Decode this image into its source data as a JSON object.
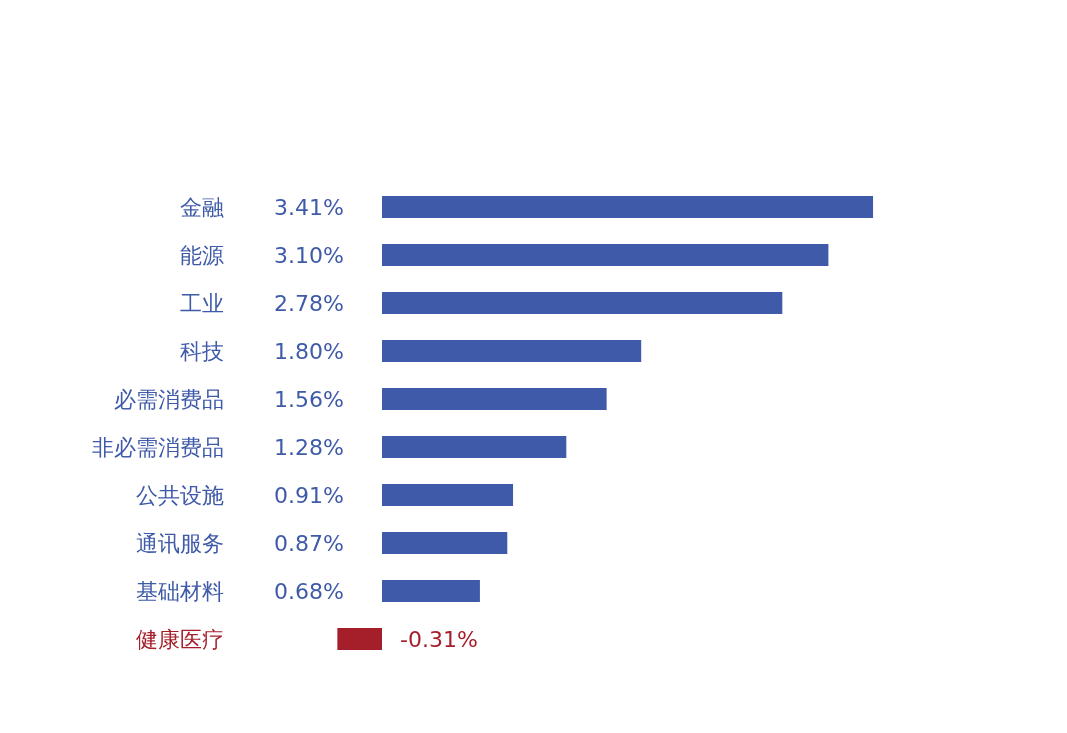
{
  "chart_data": {
    "type": "bar",
    "orientation": "horizontal",
    "categories": [
      "金融",
      "能源",
      "工业",
      "科技",
      "必需消费品",
      "非必需消费品",
      "公共设施",
      "通讯服务",
      "基础材料",
      "健康医疗"
    ],
    "values": [
      3.41,
      3.1,
      2.78,
      1.8,
      1.56,
      1.28,
      0.91,
      0.87,
      0.68,
      -0.31
    ],
    "value_labels": [
      "3.41%",
      "3.10%",
      "2.78%",
      "1.80%",
      "1.56%",
      "1.28%",
      "0.91%",
      "0.87%",
      "0.68%",
      "-0.31%"
    ],
    "colors": [
      "#3f5aa8",
      "#3f5aa8",
      "#3f5aa8",
      "#3f5aa8",
      "#3f5aa8",
      "#3f5aa8",
      "#3f5aa8",
      "#3f5aa8",
      "#3f5aa8",
      "#a51f2a"
    ]
  }
}
